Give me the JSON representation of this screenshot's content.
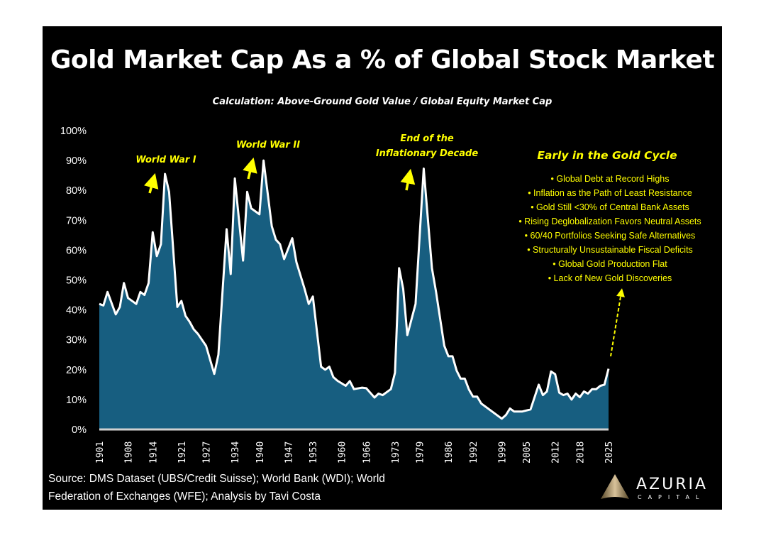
{
  "chart_data": {
    "type": "area",
    "title": "Gold Market Cap As a % of Global Stock Market",
    "subtitle": "Calculation: Above-Ground Gold Value / Global Equity Market Cap",
    "xlabel": "",
    "ylabel": "",
    "xlim": [
      1901,
      2025
    ],
    "ylim": [
      0,
      100
    ],
    "y_ticks": [
      "0%",
      "10%",
      "20%",
      "30%",
      "40%",
      "50%",
      "60%",
      "70%",
      "80%",
      "90%",
      "100%"
    ],
    "x_ticks": [
      "1901",
      "1908",
      "1914",
      "1921",
      "1927",
      "1934",
      "1940",
      "1947",
      "1953",
      "1960",
      "1966",
      "1973",
      "1979",
      "1986",
      "1992",
      "1999",
      "2005",
      "2012",
      "2018",
      "2025"
    ],
    "grid": false,
    "colors": {
      "fill": "#175e80",
      "line": "#ffffff",
      "annotation": "#ffff00",
      "background": "#000000"
    },
    "series": [
      {
        "x": [
          1901,
          1902,
          1903,
          1905,
          1906,
          1907,
          1908,
          1910,
          1911,
          1912,
          1913,
          1914,
          1915,
          1916,
          1917,
          1918,
          1920,
          1921,
          1922,
          1923,
          1924,
          1925,
          1927,
          1929,
          1930,
          1932,
          1933,
          1934,
          1936,
          1937,
          1938,
          1940,
          1941,
          1943,
          1944,
          1945,
          1946,
          1948,
          1949,
          1951,
          1952,
          1953,
          1955,
          1956,
          1957,
          1958,
          1959,
          1961,
          1962,
          1963,
          1965,
          1966,
          1968,
          1969,
          1970,
          1972,
          1973,
          1974,
          1975,
          1976,
          1978,
          1980,
          1982,
          1983,
          1985,
          1986,
          1987,
          1988,
          1989,
          1990,
          1991,
          1992,
          1993,
          1994,
          1999,
          2000,
          2001,
          2002,
          2004,
          2006,
          2008,
          2009,
          2010,
          2011,
          2012,
          2013,
          2014,
          2015,
          2016,
          2017,
          2018,
          2019,
          2020,
          2021,
          2022,
          2023,
          2024,
          2025
        ],
        "values": [
          42,
          41.5,
          46,
          38.5,
          41,
          49,
          44,
          42,
          46,
          45,
          49,
          66,
          58,
          62,
          85.5,
          79.5,
          41,
          43,
          38,
          36,
          33.5,
          32,
          28,
          18.6,
          25,
          67,
          52,
          84,
          56.5,
          79.5,
          74,
          72,
          90,
          68,
          63.5,
          62,
          57,
          64,
          56,
          47,
          42,
          44.5,
          21,
          20,
          21,
          17.5,
          16.3,
          14.6,
          16.2,
          13.5,
          14,
          13.8,
          10.7,
          12,
          11.5,
          13.5,
          19,
          54,
          47,
          31.6,
          42,
          87.3,
          54,
          46,
          28,
          24.5,
          24.5,
          19.7,
          17,
          17,
          13.4,
          11,
          11,
          8.7,
          3.6,
          4.8,
          7,
          6,
          6,
          6.7,
          15,
          11.5,
          12.7,
          19.4,
          18.5,
          12.3,
          11.5,
          12,
          10,
          12,
          10.8,
          12.7,
          12,
          13.5,
          13.5,
          14.6,
          15,
          20.3
        ]
      }
    ],
    "annotations": [
      {
        "text": "World War I"
      },
      {
        "text": "World War II"
      },
      {
        "text": "End of the",
        "text2": "Inflationary Decade"
      }
    ],
    "callout": {
      "heading": "Early in the Gold Cycle",
      "bullets": [
        "Global Debt at Record Highs",
        "Inflation as the Path of Least Resistance",
        "Gold Still <30% of Central Bank Assets",
        "Rising Deglobalization Favors Neutral Assets",
        "60/40 Portfolios Seeking Safe Alternatives",
        "Structurally Unsustainable Fiscal Deficits",
        "Global Gold Production Flat",
        "Lack of New Gold Discoveries"
      ]
    }
  },
  "source": {
    "line1": "Source: DMS Dataset (UBS/Credit Suisse); World Bank (WDI); World",
    "line2": "Federation of Exchanges (WFE); Analysis by Tavi Costa"
  },
  "logo": {
    "name": "AZURIA",
    "sub": "CAPITAL"
  }
}
